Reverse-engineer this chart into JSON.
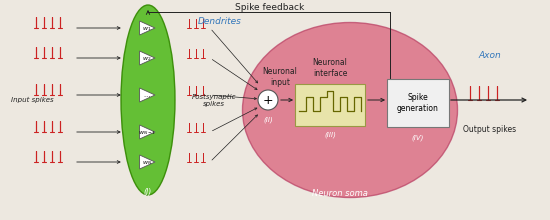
{
  "fig_width": 5.5,
  "fig_height": 2.2,
  "dpi": 100,
  "bg_color": "#ede8e0",
  "spike_color": "#cc2222",
  "dendrite_label_color": "#3377bb",
  "axon_label_color": "#3377bb",
  "green_ellipse_color": "#55bb22",
  "green_ellipse_edge": "#338800",
  "pink_ellipse_color": "#d9607a",
  "pink_ellipse_edge": "#bb4466",
  "neuron_interface_box_color": "#e8e4aa",
  "neuron_interface_box_edge": "#999944",
  "spike_gen_box_color": "#f0f0f0",
  "spike_gen_box_edge": "#777777",
  "arrow_color": "#222222",
  "feedback_line_color": "#222222",
  "text_color": "#222222",
  "input_label": "Input spikes",
  "postsynaptic_label": "Postsynaptic\nspikes",
  "dendrites_label": "Dendrites",
  "neuronal_input_label": "Neuronal\ninput",
  "neuronal_interface_label": "Neuronal\ninterface",
  "neuron_soma_label": "Neuron soma",
  "spike_gen_label": "Spike\ngeneration",
  "axon_label": "Axon",
  "output_spikes_label": "Output spikes",
  "spike_feedback_label": "Spike feedback",
  "roman_I": "(I)",
  "roman_II": "(II)",
  "roman_III": "(III)",
  "roman_IV": "(IV)"
}
